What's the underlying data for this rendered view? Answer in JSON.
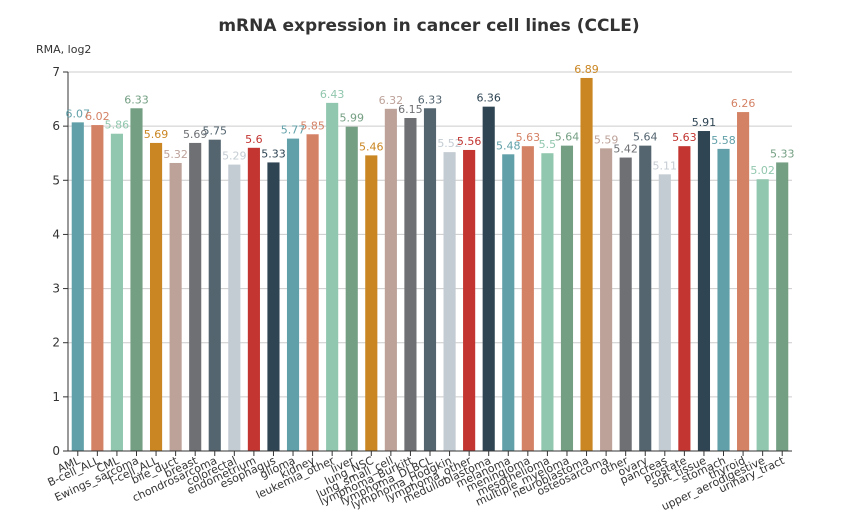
{
  "chart_data": {
    "type": "bar",
    "title": "mRNA expression in cancer cell lines (CCLE)",
    "xlabel": "",
    "ylabel": "RMA, log2",
    "ylim": [
      0,
      7
    ],
    "yticks": [
      0,
      1,
      2,
      3,
      4,
      5,
      6,
      7
    ],
    "grid": true,
    "categories": [
      "AML",
      "B-cell_ALL",
      "CML",
      "Ewings_sarcoma",
      "T-cell_ALL",
      "bile_duct",
      "breast",
      "chondrosarcoma",
      "colorectal",
      "endometrium",
      "esophagus",
      "glioma",
      "kidney",
      "leukemia_other",
      "liver",
      "lung_NSC",
      "lung_small_cell",
      "lymphoma_Burkitt",
      "lymphoma_DLBCL",
      "lymphoma_Hodgkin",
      "lymphoma_other",
      "medulloblastoma",
      "melanoma",
      "meningioma",
      "mesothelioma",
      "multiple_myeloma",
      "neuroblastoma",
      "osteosarcoma",
      "other",
      "ovary",
      "pancreas",
      "prostate",
      "soft_tissue",
      "stomach",
      "thyroid",
      "upper_aerodigestive",
      "urinary_tract"
    ],
    "values": [
      6.07,
      6.02,
      5.86,
      6.33,
      5.69,
      5.32,
      5.69,
      5.75,
      5.29,
      5.6,
      5.33,
      5.77,
      5.85,
      6.43,
      5.99,
      5.46,
      6.32,
      6.15,
      6.33,
      5.52,
      5.56,
      6.36,
      5.48,
      5.63,
      5.5,
      5.64,
      6.89,
      5.59,
      5.42,
      5.64,
      5.11,
      5.63,
      5.91,
      5.58,
      6.26,
      5.02,
      5.33
    ],
    "value_labels": [
      "6.07",
      "6.02",
      "5.86",
      "6.33",
      "5.69",
      "5.32",
      "5.69",
      "5.75",
      "5.29",
      "5.6",
      "5.33",
      "5.77",
      "5.85",
      "6.43",
      "5.99",
      "5.46",
      "6.32",
      "6.15",
      "6.33",
      "5.52",
      "5.56",
      "6.36",
      "5.48",
      "5.63",
      "5.5",
      "5.64",
      "6.89",
      "5.59",
      "5.42",
      "5.64",
      "5.11",
      "5.63",
      "5.91",
      "5.58",
      "6.26",
      "5.02",
      "5.33"
    ],
    "palette": [
      "#61a0a8",
      "#d48265",
      "#91c7ae",
      "#749f83",
      "#ca8622",
      "#bda29a",
      "#6e7074",
      "#546570",
      "#c4ccd3",
      "#c23531",
      "#2f4554"
    ]
  }
}
